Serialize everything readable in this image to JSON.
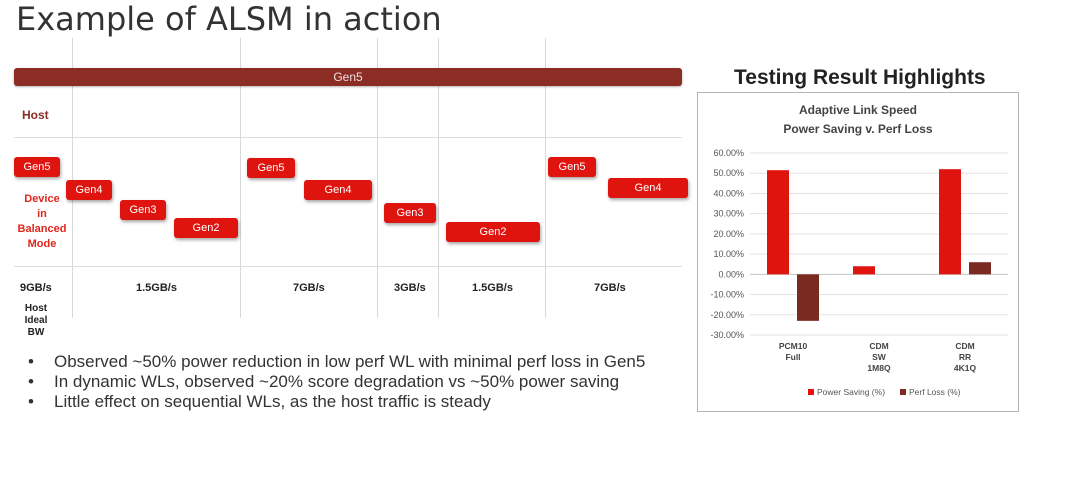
{
  "slide": {
    "title": "Example of ALSM in action"
  },
  "timeline": {
    "bar_label": "Gen5",
    "host_label": "Host",
    "device_label": [
      "Device",
      "in",
      "Balanced",
      "Mode"
    ],
    "chips": [
      "Gen5",
      "Gen4",
      "Gen3",
      "Gen2",
      "Gen5",
      "Gen4",
      "Gen3",
      "Gen2",
      "Gen5",
      "Gen4"
    ],
    "bandwidths": [
      "9GB/s",
      "1.5GB/s",
      "7GB/s",
      "3GB/s",
      "1.5GB/s",
      "7GB/s"
    ],
    "bw_label": [
      "Host",
      "Ideal BW"
    ]
  },
  "bullets": [
    "Observed ~50% power reduction in low perf WL with minimal perf loss in Gen5",
    "In dynamic WLs, observed ~20% score degradation vs ~50% power saving",
    "Little effect on sequential WLs, as the host traffic is steady"
  ],
  "results": {
    "heading": "Testing Result Highlights"
  },
  "chart_data": {
    "type": "bar",
    "title": "Adaptive Link Speed",
    "subtitle": "Power Saving v. Perf Loss",
    "categories": [
      [
        "PCM10",
        "Full"
      ],
      [
        "CDM",
        "SW",
        "1M8Q"
      ],
      [
        "CDM",
        "RR",
        "4K1Q"
      ]
    ],
    "series": [
      {
        "name": "Power Saving (%)",
        "color": "#e0140f",
        "values": [
          51.5,
          4.0,
          52.0
        ]
      },
      {
        "name": "Perf Loss (%)",
        "color": "#7b2a22",
        "values": [
          -23.0,
          0,
          6.0
        ]
      }
    ],
    "yticks": [
      "60.00%",
      "50.00%",
      "40.00%",
      "30.00%",
      "20.00%",
      "10.00%",
      "0.00%",
      "-10.00%",
      "-20.00%",
      "-30.00%"
    ],
    "ylim": [
      -30,
      60
    ],
    "legend_position": "bottom",
    "grid": true
  }
}
